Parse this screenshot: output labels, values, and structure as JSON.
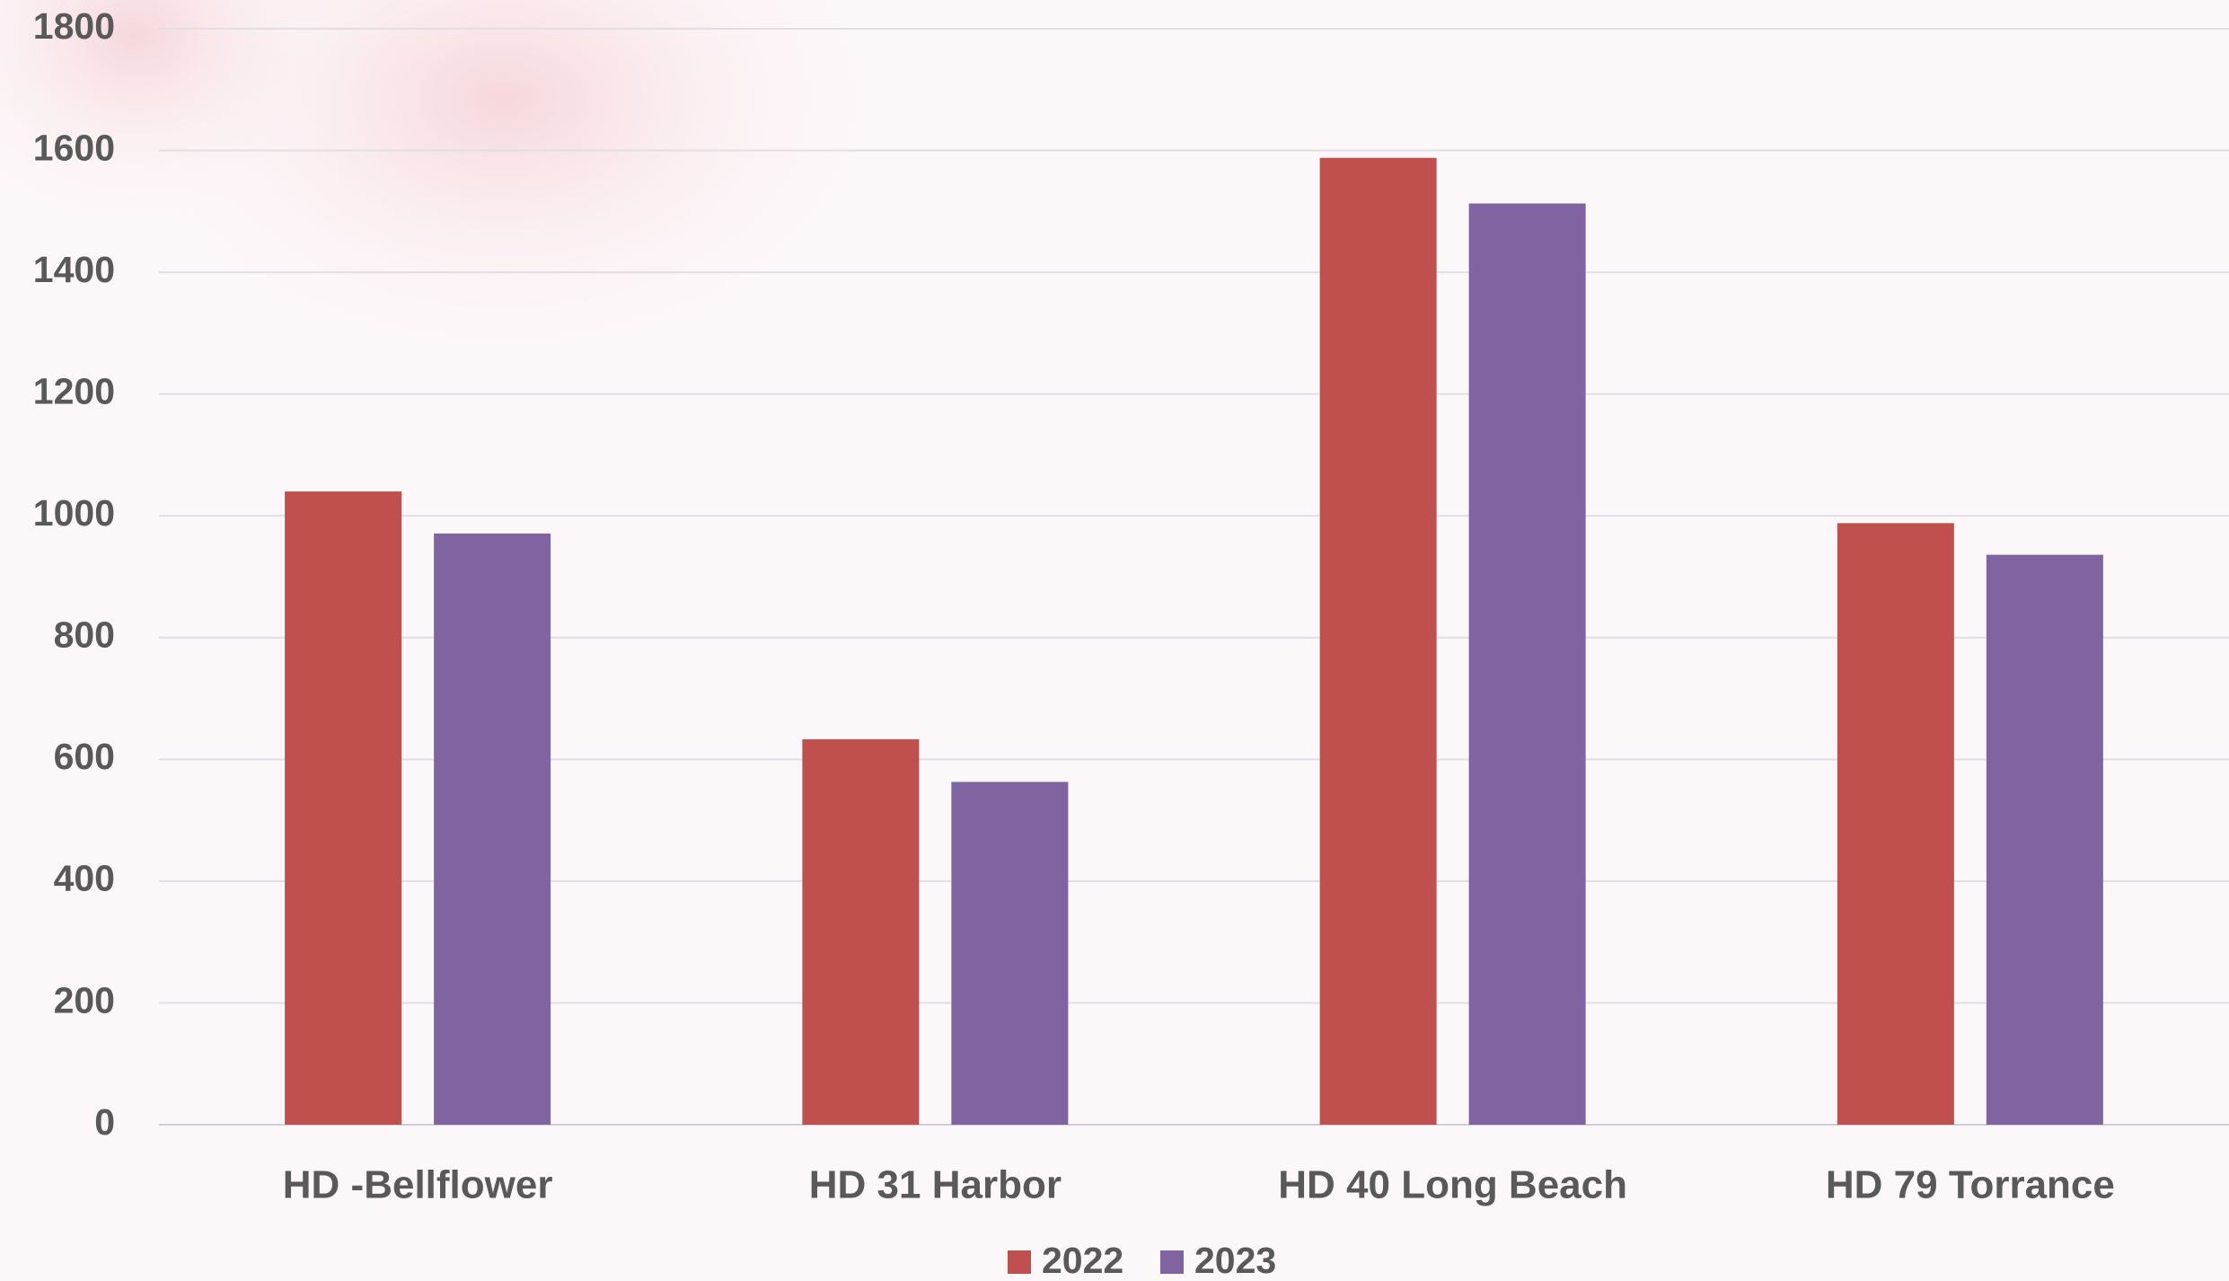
{
  "chart_data": {
    "type": "bar",
    "categories": [
      "HD -Bellflower",
      "HD 31 Harbor",
      "HD 40 Long Beach",
      "HD 79 Torrance"
    ],
    "series": [
      {
        "name": "2022",
        "color": "#c0504d",
        "values": [
          1040,
          633,
          1588,
          988
        ]
      },
      {
        "name": "2023",
        "color": "#8064a2",
        "values": [
          971,
          563,
          1513,
          936
        ]
      }
    ],
    "ylim": [
      0,
      1800
    ],
    "yticks": [
      0,
      200,
      400,
      600,
      800,
      1000,
      1200,
      1400,
      1600,
      1800
    ],
    "grid": true
  }
}
